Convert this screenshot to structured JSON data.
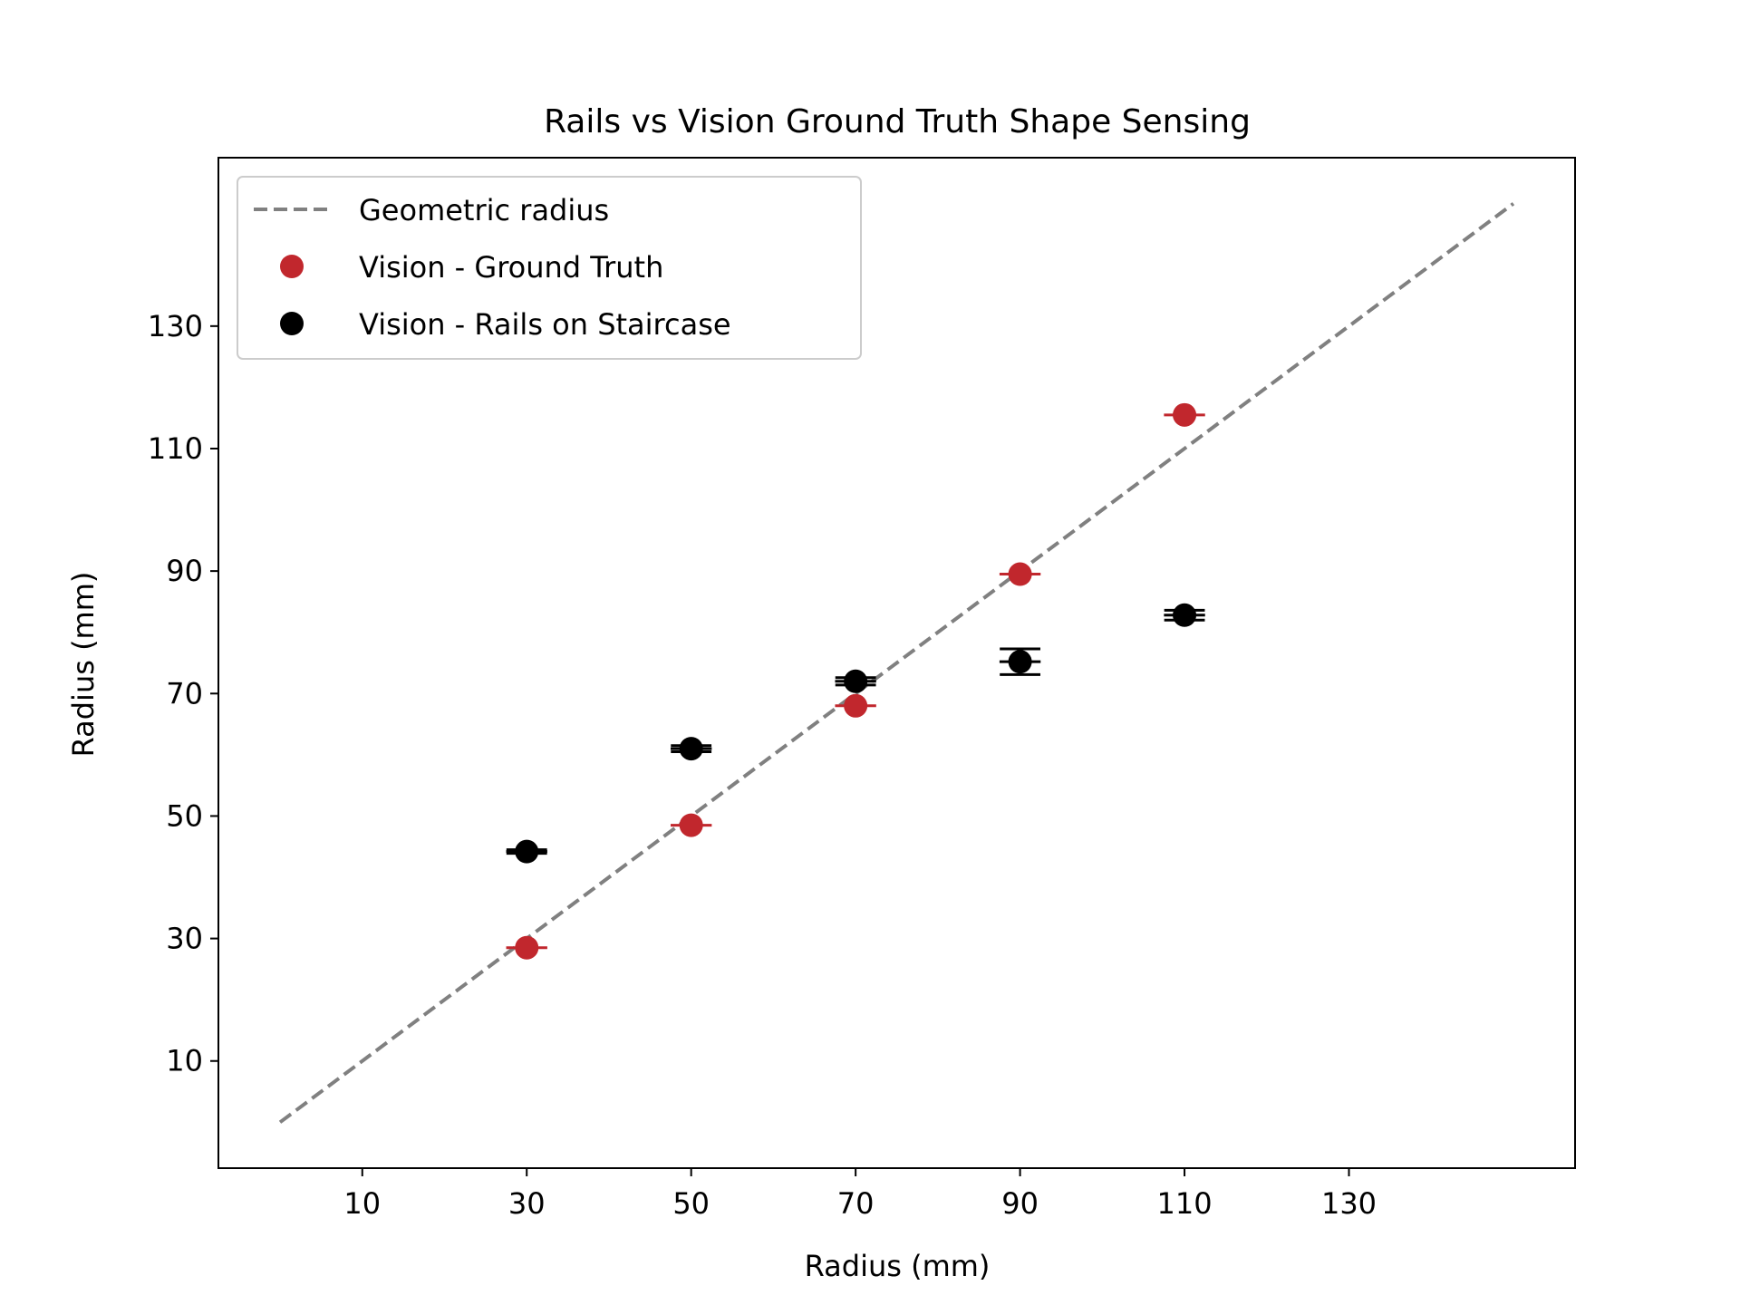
{
  "chart_data": {
    "type": "scatter",
    "title": "Rails vs Vision Ground Truth Shape Sensing",
    "xlabel": "Radius (mm)",
    "ylabel": "Radius (mm)",
    "xlim": [
      -7.5,
      157.5
    ],
    "ylim": [
      -7.5,
      157.5
    ],
    "xticks": [
      10,
      30,
      50,
      70,
      90,
      110,
      130
    ],
    "yticks": [
      10,
      30,
      50,
      70,
      90,
      110,
      130
    ],
    "grid": false,
    "legend_position": "upper left",
    "reference_line": {
      "name": "Geometric radius",
      "x": [
        0,
        150
      ],
      "y": [
        0,
        150
      ],
      "style": "dashed",
      "color": "#808080"
    },
    "series": [
      {
        "name": "Vision - Ground Truth",
        "color": "#c1272d",
        "points": [
          {
            "x": 30,
            "y": 28.5,
            "xerr": 2.5,
            "yerr": 0
          },
          {
            "x": 50,
            "y": 48.5,
            "xerr": 2.5,
            "yerr": 0
          },
          {
            "x": 70,
            "y": 68.0,
            "xerr": 2.5,
            "yerr": 0
          },
          {
            "x": 90,
            "y": 89.5,
            "xerr": 2.5,
            "yerr": 0
          },
          {
            "x": 110,
            "y": 115.5,
            "xerr": 2.5,
            "yerr": 0
          }
        ]
      },
      {
        "name": "Vision - Rails on Staircase",
        "color": "#000000",
        "points": [
          {
            "x": 30,
            "y": 44.2,
            "xerr": 2.5,
            "yerr": 0.3
          },
          {
            "x": 50,
            "y": 61.0,
            "xerr": 2.5,
            "yerr": 0.5
          },
          {
            "x": 70,
            "y": 72.0,
            "xerr": 2.5,
            "yerr": 0.6
          },
          {
            "x": 90,
            "y": 75.2,
            "xerr": 2.5,
            "yerr": 2.1
          },
          {
            "x": 110,
            "y": 82.8,
            "xerr": 2.5,
            "yerr": 0.8
          }
        ]
      }
    ]
  }
}
